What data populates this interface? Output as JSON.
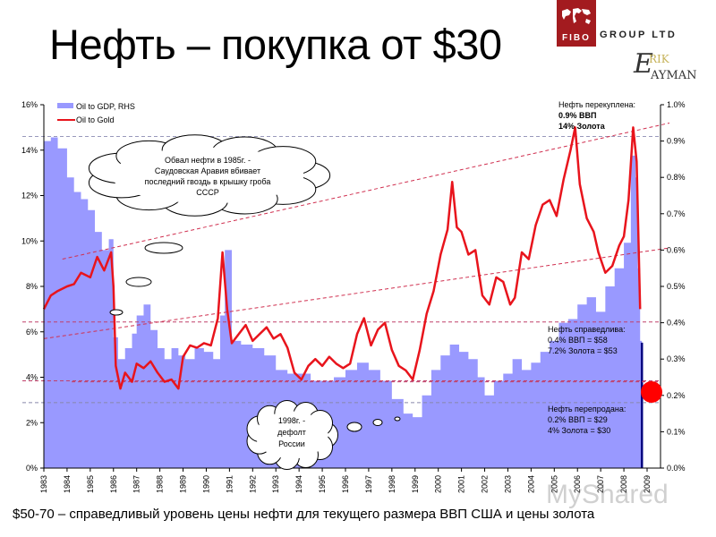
{
  "header": {
    "title": "Нефть – покупка от $30",
    "logo_fibo": "FIBO",
    "logo_group": "GROUP LTD",
    "logo_erik_initial": "E",
    "logo_erik_rest": "RIK",
    "logo_nayman": "AYMAN",
    "logo_color": "#a31b1f"
  },
  "footer": {
    "text": "$50-70 – справедливый уровень цены нефти для текущего размера ВВП США и цены золота"
  },
  "watermark": "MyShared",
  "chart_data": {
    "type": "line",
    "title": "Нефть – покупка от $30",
    "xlabel": "",
    "ylabel_left": "Oil to Gold",
    "ylabel_right": "Oil to GDP",
    "x_ticks": [
      "1983",
      "1984",
      "1985",
      "1986",
      "1987",
      "1988",
      "1989",
      "1990",
      "1991",
      "1992",
      "1993",
      "1994",
      "1995",
      "1996",
      "1997",
      "1998",
      "1999",
      "2000",
      "2001",
      "2002",
      "2003",
      "2004",
      "2005",
      "2006",
      "2007",
      "2008",
      "2009"
    ],
    "y_left_ticks": [
      "0%",
      "2%",
      "4%",
      "6%",
      "8%",
      "10%",
      "12%",
      "14%",
      "16%"
    ],
    "y_right_ticks": [
      "0.0%",
      "0.1%",
      "0.2%",
      "0.3%",
      "0.4%",
      "0.5%",
      "0.6%",
      "0.7%",
      "0.8%",
      "0.9%",
      "1.0%"
    ],
    "ylim_left": [
      0,
      16
    ],
    "ylim_right": [
      0,
      1.0
    ],
    "legend": [
      {
        "label": "Oil to GDP, RHS",
        "color": "#9999ff",
        "kind": "area"
      },
      {
        "label": "Oil to Gold",
        "color": "#e8141c",
        "kind": "line"
      }
    ],
    "series": [
      {
        "name": "Oil to Gold",
        "axis": "left",
        "color": "#e8141c",
        "x": [
          1983.0,
          1983.3,
          1983.6,
          1984.0,
          1984.3,
          1984.6,
          1985.0,
          1985.3,
          1985.6,
          1985.9,
          1986.0,
          1986.1,
          1986.3,
          1986.5,
          1986.8,
          1987.0,
          1987.3,
          1987.6,
          1987.9,
          1988.2,
          1988.5,
          1988.8,
          1989.0,
          1989.3,
          1989.6,
          1989.9,
          1990.2,
          1990.5,
          1990.7,
          1990.9,
          1991.1,
          1991.4,
          1991.7,
          1992.0,
          1992.3,
          1992.6,
          1992.9,
          1993.2,
          1993.5,
          1993.8,
          1994.1,
          1994.4,
          1994.7,
          1995.0,
          1995.3,
          1995.6,
          1995.9,
          1996.2,
          1996.5,
          1996.8,
          1997.1,
          1997.4,
          1997.7,
          1998.0,
          1998.3,
          1998.6,
          1998.9,
          1999.2,
          1999.5,
          1999.8,
          2000.1,
          2000.4,
          2000.6,
          2000.8,
          2001.0,
          2001.3,
          2001.6,
          2001.9,
          2002.2,
          2002.5,
          2002.8,
          2003.1,
          2003.3,
          2003.6,
          2003.9,
          2004.2,
          2004.5,
          2004.8,
          2005.1,
          2005.4,
          2005.7,
          2005.9,
          2006.1,
          2006.4,
          2006.7,
          2006.9,
          2007.2,
          2007.5,
          2007.8,
          2008.0,
          2008.2,
          2008.4,
          2008.55,
          2008.7
        ],
        "values": [
          7.0,
          7.6,
          7.8,
          8.0,
          8.1,
          8.6,
          8.4,
          9.3,
          8.7,
          9.5,
          8.0,
          4.5,
          3.5,
          4.2,
          3.8,
          4.6,
          4.4,
          4.7,
          4.2,
          3.8,
          3.9,
          3.5,
          4.9,
          5.4,
          5.3,
          5.5,
          5.4,
          6.6,
          9.5,
          7.0,
          5.5,
          5.9,
          6.3,
          5.6,
          5.9,
          6.2,
          5.7,
          5.9,
          5.3,
          4.2,
          3.9,
          4.5,
          4.8,
          4.5,
          4.9,
          4.6,
          4.4,
          4.6,
          5.9,
          6.6,
          5.4,
          6.1,
          6.4,
          5.2,
          4.5,
          4.3,
          3.9,
          5.2,
          6.8,
          7.8,
          9.4,
          10.5,
          12.6,
          10.6,
          10.4,
          9.4,
          9.6,
          7.6,
          7.2,
          8.4,
          8.2,
          7.2,
          7.5,
          9.5,
          9.2,
          10.7,
          11.6,
          11.8,
          11.1,
          12.7,
          14.0,
          15.0,
          12.5,
          11.0,
          10.4,
          9.5,
          8.6,
          8.9,
          9.8,
          10.2,
          11.8,
          15.0,
          13.5,
          7.0
        ]
      },
      {
        "name": "Oil to GDP, RHS",
        "axis": "right",
        "color": "#9999ff",
        "x": [
          1983.0,
          1983.3,
          1983.6,
          1984.0,
          1984.3,
          1984.6,
          1984.9,
          1985.2,
          1985.5,
          1985.8,
          1986.0,
          1986.2,
          1986.5,
          1986.8,
          1987.0,
          1987.3,
          1987.6,
          1987.9,
          1988.2,
          1988.5,
          1988.8,
          1989.1,
          1989.5,
          1989.9,
          1990.3,
          1990.6,
          1990.8,
          1991.1,
          1991.5,
          1992.0,
          1992.5,
          1993.0,
          1993.5,
          1994.0,
          1994.5,
          1995.0,
          1995.5,
          1996.0,
          1996.5,
          1997.0,
          1997.5,
          1998.0,
          1998.5,
          1998.9,
          1999.3,
          1999.7,
          2000.1,
          2000.5,
          2000.9,
          2001.3,
          2001.7,
          2002.0,
          2002.4,
          2002.8,
          2003.2,
          2003.6,
          2004.0,
          2004.4,
          2004.8,
          2005.2,
          2005.6,
          2006.0,
          2006.4,
          2006.8,
          2007.2,
          2007.6,
          2008.0,
          2008.3,
          2008.5,
          2008.6,
          2008.7
        ],
        "values": [
          0.9,
          0.91,
          0.88,
          0.8,
          0.76,
          0.74,
          0.71,
          0.65,
          0.6,
          0.63,
          0.36,
          0.3,
          0.33,
          0.37,
          0.42,
          0.45,
          0.38,
          0.33,
          0.3,
          0.33,
          0.31,
          0.3,
          0.33,
          0.32,
          0.3,
          0.42,
          0.6,
          0.35,
          0.34,
          0.33,
          0.31,
          0.27,
          0.26,
          0.26,
          0.24,
          0.24,
          0.25,
          0.27,
          0.29,
          0.27,
          0.24,
          0.19,
          0.15,
          0.14,
          0.2,
          0.27,
          0.31,
          0.34,
          0.32,
          0.3,
          0.25,
          0.2,
          0.24,
          0.26,
          0.3,
          0.27,
          0.29,
          0.32,
          0.35,
          0.4,
          0.41,
          0.45,
          0.47,
          0.43,
          0.5,
          0.55,
          0.62,
          0.86,
          0.8,
          0.55,
          0.35
        ]
      }
    ],
    "trend_lines": [
      {
        "name": "upper-channel",
        "from": [
          1983.8,
          9.2
        ],
        "to": [
          2009.0,
          14.8
        ]
      },
      {
        "name": "lower-channel",
        "from": [
          1983.0,
          5.7
        ],
        "to": [
          2009.0,
          9.3
        ]
      }
    ],
    "reference_lines_left": [
      14.6,
      3.8
    ],
    "reference_lines_right": [
      0.402,
      0.18,
      0.24
    ],
    "annotations": [
      {
        "id": "overbought",
        "lines": [
          "Нефть перекуплена:",
          "0.9% ВВП",
          "14% Золота"
        ]
      },
      {
        "id": "fair",
        "lines": [
          "Нефть справедлива:",
          "0.4% ВВП = $58",
          "7.2% Золота = $53"
        ]
      },
      {
        "id": "oversold",
        "lines": [
          "Нефть перепродана:",
          "0.2% ВВП = $29",
          "4% Золота = $30"
        ]
      },
      {
        "id": "cloud-1985",
        "lines": [
          "Обвал нефти в 1985г. -",
          "Саудовская Аравия вбивает",
          "последний гвоздь в крышку гроба",
          "СССР"
        ]
      },
      {
        "id": "cloud-1998",
        "lines": [
          "1998г. -",
          "дефолт",
          "России"
        ]
      }
    ]
  }
}
